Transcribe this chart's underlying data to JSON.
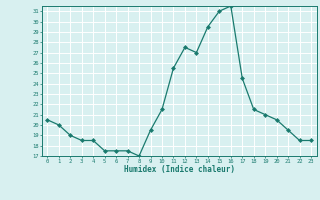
{
  "x": [
    0,
    1,
    2,
    3,
    4,
    5,
    6,
    7,
    8,
    9,
    10,
    11,
    12,
    13,
    14,
    15,
    16,
    17,
    18,
    19,
    20,
    21,
    22,
    23
  ],
  "y": [
    20.5,
    20.0,
    19.0,
    18.5,
    18.5,
    17.5,
    17.5,
    17.5,
    17.0,
    19.5,
    21.5,
    25.5,
    27.5,
    27.0,
    29.5,
    31.0,
    31.5,
    24.5,
    21.5,
    21.0,
    20.5,
    19.5,
    18.5,
    18.5
  ],
  "xlabel": "Humidex (Indice chaleur)",
  "line_color": "#1a7a6e",
  "bg_color": "#d8f0f0",
  "grid_color": "#ffffff",
  "ylim": [
    17,
    31.5
  ],
  "xlim": [
    -0.5,
    23.5
  ],
  "yticks": [
    17,
    18,
    19,
    20,
    21,
    22,
    23,
    24,
    25,
    26,
    27,
    28,
    29,
    30,
    31
  ],
  "xticks": [
    0,
    1,
    2,
    3,
    4,
    5,
    6,
    7,
    8,
    9,
    10,
    11,
    12,
    13,
    14,
    15,
    16,
    17,
    18,
    19,
    20,
    21,
    22,
    23
  ]
}
